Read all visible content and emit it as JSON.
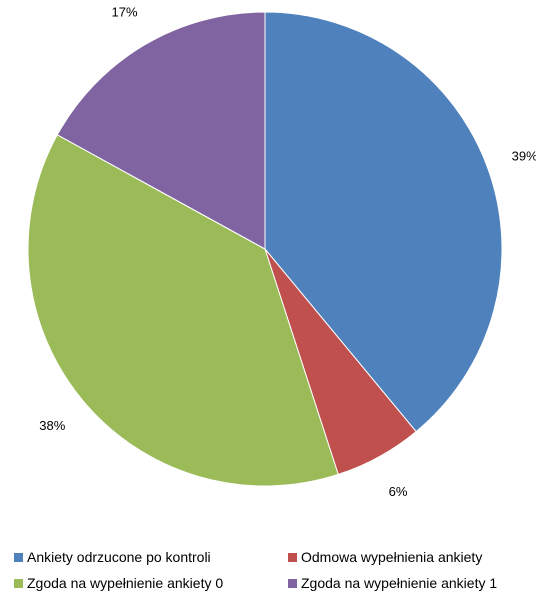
{
  "chart_data": {
    "type": "pie",
    "title": "",
    "categories": [
      "Ankiety odrzucone po kontroli",
      "Odmowa wypełnienia ankiety",
      "Zgoda na wypełnienie ankiety 0",
      "Zgoda na wypełnienie ankiety 1"
    ],
    "values": [
      39,
      6,
      38,
      17
    ],
    "labels": [
      "39%",
      "6%",
      "38%",
      "17%"
    ],
    "colors": [
      "#4F81BD",
      "#C0504D",
      "#9BBB59",
      "#8064A2"
    ],
    "start_angle_deg": 0,
    "direction": "clockwise",
    "legend_position": "bottom"
  }
}
